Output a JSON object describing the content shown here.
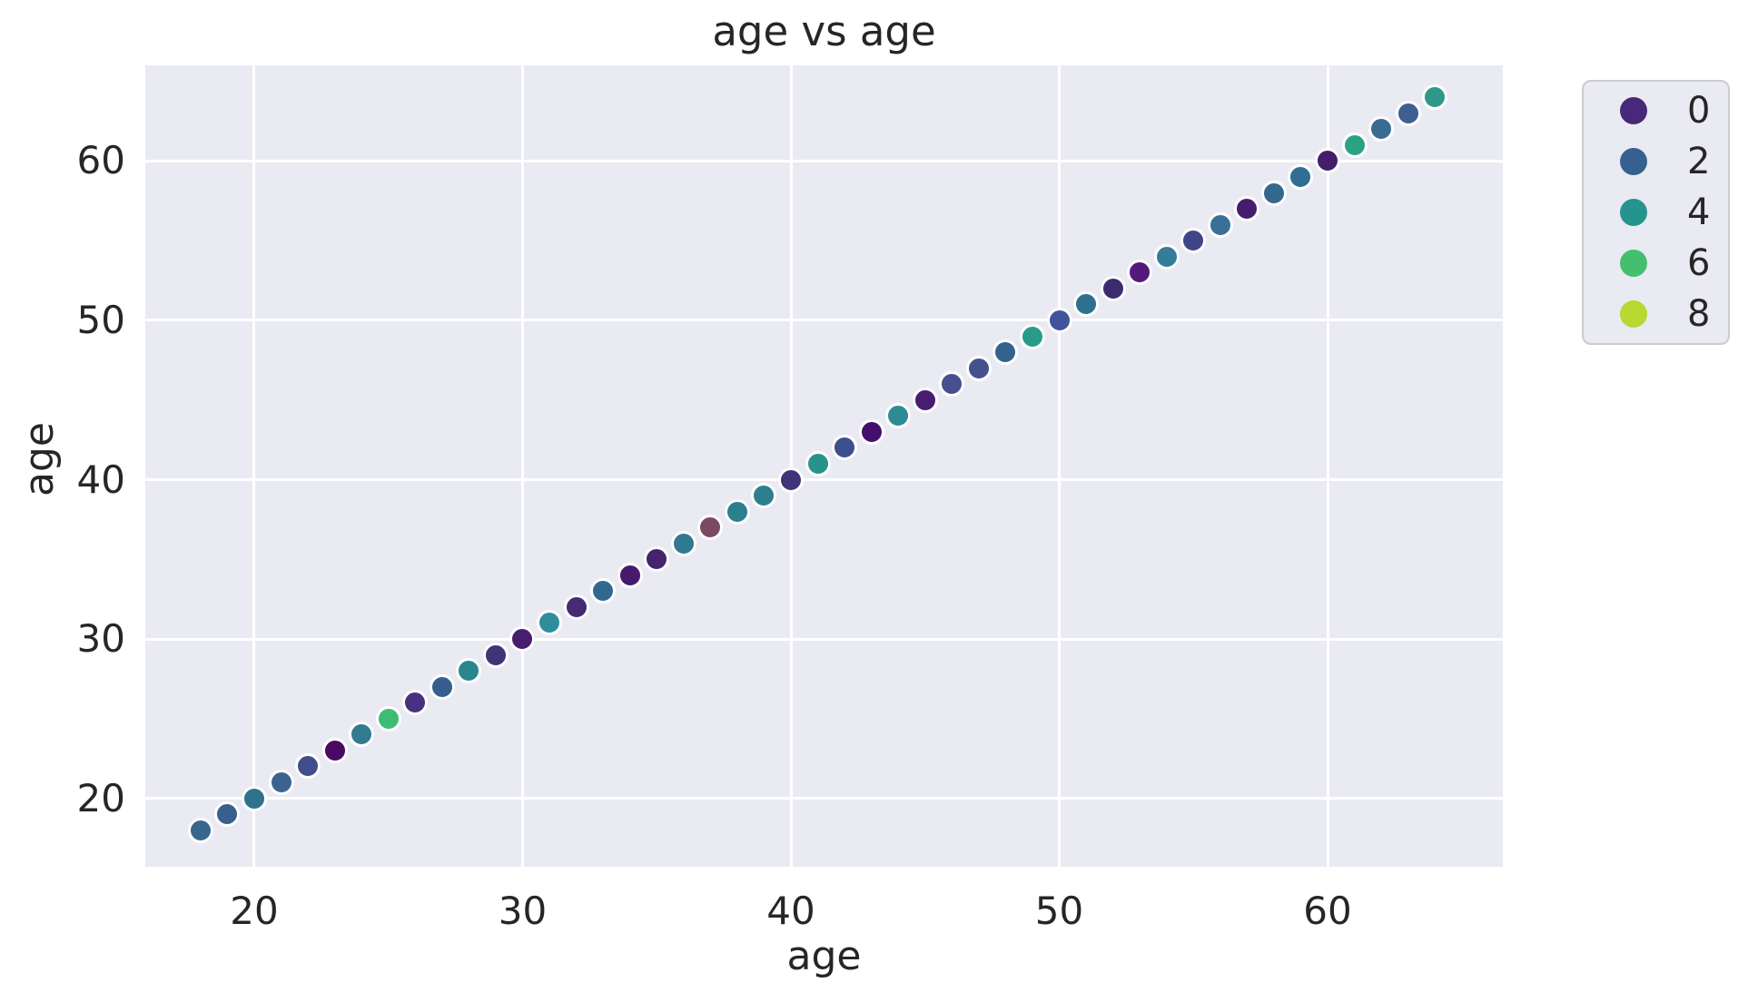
{
  "figure": {
    "background": "#ffffff",
    "text_color": "#262626"
  },
  "chart_data": {
    "type": "scatter",
    "title": "age vs age",
    "xlabel": "age",
    "ylabel": "age",
    "xlim": [
      15.94,
      66.53
    ],
    "ylim": [
      15.7,
      66.01
    ],
    "xticks": [
      "20",
      "30",
      "40",
      "50",
      "60"
    ],
    "xtick_values": [
      20,
      30,
      40,
      50,
      60
    ],
    "yticks": [
      "20",
      "30",
      "40",
      "50",
      "60"
    ],
    "ytick_values": [
      20,
      30,
      40,
      50,
      60
    ],
    "grid": true,
    "plot_bg": "#eaeaf2",
    "grid_color": "#ffffff",
    "marker_edge_color": "#ffffff",
    "legend": {
      "position": "outside-right",
      "entries": [
        {
          "label": "0",
          "color": "#482878"
        },
        {
          "label": "2",
          "color": "#36618f"
        },
        {
          "label": "4",
          "color": "#25948e"
        },
        {
          "label": "6",
          "color": "#44bf70"
        },
        {
          "label": "8",
          "color": "#b8d832"
        }
      ]
    },
    "points": [
      {
        "x": 18,
        "y": 18,
        "color": "#38678e"
      },
      {
        "x": 19,
        "y": 19,
        "color": "#3a5f8d"
      },
      {
        "x": 20,
        "y": 20,
        "color": "#2e738e"
      },
      {
        "x": 21,
        "y": 21,
        "color": "#3a648f"
      },
      {
        "x": 22,
        "y": 22,
        "color": "#414d8c"
      },
      {
        "x": 23,
        "y": 23,
        "color": "#4a0963"
      },
      {
        "x": 24,
        "y": 24,
        "color": "#337b90"
      },
      {
        "x": 25,
        "y": 25,
        "color": "#3fbc73"
      },
      {
        "x": 26,
        "y": 26,
        "color": "#46327e"
      },
      {
        "x": 27,
        "y": 27,
        "color": "#365f8d"
      },
      {
        "x": 28,
        "y": 28,
        "color": "#2a868e"
      },
      {
        "x": 29,
        "y": 29,
        "color": "#413376"
      },
      {
        "x": 30,
        "y": 30,
        "color": "#471d6e"
      },
      {
        "x": 31,
        "y": 31,
        "color": "#2f8e9c"
      },
      {
        "x": 32,
        "y": 32,
        "color": "#452a74"
      },
      {
        "x": 33,
        "y": 33,
        "color": "#31688e"
      },
      {
        "x": 34,
        "y": 34,
        "color": "#461b6e"
      },
      {
        "x": 35,
        "y": 35,
        "color": "#44246e"
      },
      {
        "x": 36,
        "y": 36,
        "color": "#31798f"
      },
      {
        "x": 37,
        "y": 37,
        "color": "#7a4a62"
      },
      {
        "x": 38,
        "y": 38,
        "color": "#2b7f8e"
      },
      {
        "x": 39,
        "y": 39,
        "color": "#2c7f8e"
      },
      {
        "x": 40,
        "y": 40,
        "color": "#3f3379"
      },
      {
        "x": 41,
        "y": 41,
        "color": "#26948b"
      },
      {
        "x": 42,
        "y": 42,
        "color": "#3e4f8f"
      },
      {
        "x": 43,
        "y": 43,
        "color": "#45106b"
      },
      {
        "x": 44,
        "y": 44,
        "color": "#2f8a94"
      },
      {
        "x": 45,
        "y": 45,
        "color": "#471d72"
      },
      {
        "x": 46,
        "y": 46,
        "color": "#46508f"
      },
      {
        "x": 47,
        "y": 47,
        "color": "#44518e"
      },
      {
        "x": 48,
        "y": 48,
        "color": "#33638d"
      },
      {
        "x": 49,
        "y": 49,
        "color": "#2a9a8a"
      },
      {
        "x": 50,
        "y": 50,
        "color": "#41529e"
      },
      {
        "x": 51,
        "y": 51,
        "color": "#2e718e"
      },
      {
        "x": 52,
        "y": 52,
        "color": "#3b2c70"
      },
      {
        "x": 53,
        "y": 53,
        "color": "#521a7c"
      },
      {
        "x": 54,
        "y": 54,
        "color": "#337d98"
      },
      {
        "x": 55,
        "y": 55,
        "color": "#3f4587"
      },
      {
        "x": 56,
        "y": 56,
        "color": "#3a6f99"
      },
      {
        "x": 57,
        "y": 57,
        "color": "#461d6e"
      },
      {
        "x": 58,
        "y": 58,
        "color": "#35688e"
      },
      {
        "x": 59,
        "y": 59,
        "color": "#2f6f93"
      },
      {
        "x": 60,
        "y": 60,
        "color": "#451e6b"
      },
      {
        "x": 61,
        "y": 61,
        "color": "#2aa382"
      },
      {
        "x": 62,
        "y": 62,
        "color": "#3a6b93"
      },
      {
        "x": 63,
        "y": 63,
        "color": "#3e5f92"
      },
      {
        "x": 64,
        "y": 64,
        "color": "#2e988a"
      }
    ]
  }
}
